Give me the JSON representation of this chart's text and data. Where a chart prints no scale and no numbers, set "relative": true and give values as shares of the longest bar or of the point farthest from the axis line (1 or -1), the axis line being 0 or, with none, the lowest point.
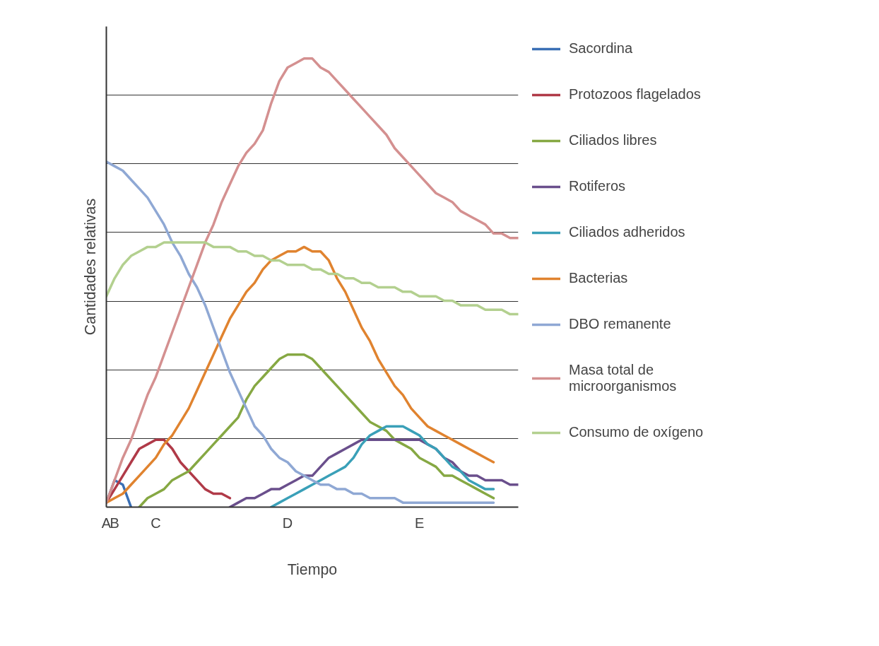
{
  "chart_data": {
    "type": "line",
    "relative": true,
    "xlabel": "Tiempo",
    "ylabel": "Cantidades relativas",
    "categories": [
      "A",
      "B",
      null,
      null,
      null,
      null,
      "C",
      null,
      null,
      null,
      null,
      null,
      null,
      null,
      null,
      null,
      null,
      null,
      null,
      null,
      null,
      null,
      "D",
      null,
      null,
      null,
      null,
      null,
      null,
      null,
      null,
      null,
      null,
      null,
      null,
      null,
      null,
      null,
      "E",
      null,
      null,
      null,
      null,
      null,
      null,
      null,
      null,
      null,
      null,
      null,
      null
    ],
    "grid": "y",
    "legend": "right",
    "series": [
      {
        "name": "Sacordina",
        "color": "#3a6fb5",
        "values": [
          0.01,
          0.06,
          0.05,
          0.0,
          null,
          null,
          null,
          null,
          null,
          null,
          null,
          null,
          null,
          null,
          null,
          null,
          null,
          null,
          null,
          null,
          null,
          null,
          null,
          null,
          null,
          null,
          null,
          null,
          null,
          null,
          null,
          null,
          null,
          null,
          null,
          null,
          null,
          null,
          null,
          null,
          null,
          null,
          null,
          null,
          null,
          null,
          null,
          null,
          null,
          null,
          null
        ]
      },
      {
        "name": "Protozoos flagelados",
        "color": "#b03a48",
        "values": [
          0.01,
          0.04,
          0.07,
          0.1,
          0.13,
          0.14,
          0.15,
          0.15,
          0.13,
          0.1,
          0.08,
          0.06,
          0.04,
          0.03,
          0.03,
          0.02,
          null,
          null,
          null,
          null,
          null,
          null,
          null,
          null,
          null,
          null,
          null,
          null,
          null,
          null,
          null,
          null,
          null,
          null,
          null,
          null,
          null,
          null,
          null,
          null,
          null,
          null,
          null,
          null,
          null,
          null,
          null,
          null,
          null,
          null,
          null
        ]
      },
      {
        "name": "Ciliados libres",
        "color": "#86a843",
        "values": [
          null,
          null,
          null,
          null,
          0.0,
          0.02,
          0.03,
          0.04,
          0.06,
          0.07,
          0.08,
          0.1,
          0.12,
          0.14,
          0.16,
          0.18,
          0.2,
          0.24,
          0.27,
          0.29,
          0.31,
          0.33,
          0.34,
          0.34,
          0.34,
          0.33,
          0.31,
          0.29,
          0.27,
          0.25,
          0.23,
          0.21,
          0.19,
          0.18,
          0.17,
          0.15,
          0.14,
          0.13,
          0.11,
          0.1,
          0.09,
          0.07,
          0.07,
          0.06,
          0.05,
          0.04,
          0.03,
          0.02,
          null,
          null,
          null
        ]
      },
      {
        "name": "Rotiferos",
        "color": "#6a4f8c",
        "values": [
          null,
          null,
          null,
          null,
          null,
          null,
          null,
          null,
          null,
          null,
          null,
          null,
          null,
          null,
          null,
          0.0,
          0.01,
          0.02,
          0.02,
          0.03,
          0.04,
          0.04,
          0.05,
          0.06,
          0.07,
          0.07,
          0.09,
          0.11,
          0.12,
          0.13,
          0.14,
          0.15,
          0.15,
          0.15,
          0.15,
          0.15,
          0.15,
          0.15,
          0.15,
          0.14,
          0.13,
          0.11,
          0.1,
          0.08,
          0.07,
          0.07,
          0.06,
          0.06,
          0.06,
          0.05,
          0.05
        ]
      },
      {
        "name": "Ciliados adheridos",
        "color": "#3aa0b8",
        "values": [
          null,
          null,
          null,
          null,
          null,
          null,
          null,
          null,
          null,
          null,
          null,
          null,
          null,
          null,
          null,
          null,
          null,
          null,
          null,
          null,
          0.0,
          0.01,
          0.02,
          0.03,
          0.04,
          0.05,
          0.06,
          0.07,
          0.08,
          0.09,
          0.11,
          0.14,
          0.16,
          0.17,
          0.18,
          0.18,
          0.18,
          0.17,
          0.16,
          0.14,
          0.13,
          0.11,
          0.09,
          0.08,
          0.06,
          0.05,
          0.04,
          0.04,
          null,
          null,
          null
        ]
      },
      {
        "name": "Bacterias",
        "color": "#e0832f",
        "values": [
          0.01,
          0.02,
          0.03,
          0.05,
          0.07,
          0.09,
          0.11,
          0.14,
          0.16,
          0.19,
          0.22,
          0.26,
          0.3,
          0.34,
          0.38,
          0.42,
          0.45,
          0.48,
          0.5,
          0.53,
          0.55,
          0.56,
          0.57,
          0.57,
          0.58,
          0.57,
          0.57,
          0.55,
          0.51,
          0.48,
          0.44,
          0.4,
          0.37,
          0.33,
          0.3,
          0.27,
          0.25,
          0.22,
          0.2,
          0.18,
          0.17,
          0.16,
          0.15,
          0.14,
          0.13,
          0.12,
          0.11,
          0.1,
          null,
          null,
          null
        ]
      },
      {
        "name": "DBO remanente",
        "color": "#8fa8d4",
        "values": [
          0.77,
          0.76,
          0.75,
          0.73,
          0.71,
          0.69,
          0.66,
          0.63,
          0.59,
          0.56,
          0.52,
          0.49,
          0.45,
          0.4,
          0.35,
          0.3,
          0.26,
          0.22,
          0.18,
          0.16,
          0.13,
          0.11,
          0.1,
          0.08,
          0.07,
          0.06,
          0.05,
          0.05,
          0.04,
          0.04,
          0.03,
          0.03,
          0.02,
          0.02,
          0.02,
          0.02,
          0.01,
          0.01,
          0.01,
          0.01,
          0.01,
          0.01,
          0.01,
          0.01,
          0.01,
          0.01,
          0.01,
          0.01,
          null,
          null,
          null
        ]
      },
      {
        "name": "Masa total de microorganismos",
        "color": "#d49090",
        "values": [
          0.01,
          0.06,
          0.11,
          0.15,
          0.2,
          0.25,
          0.29,
          0.34,
          0.39,
          0.44,
          0.49,
          0.54,
          0.59,
          0.63,
          0.68,
          0.72,
          0.76,
          0.79,
          0.81,
          0.84,
          0.9,
          0.95,
          0.98,
          0.99,
          1.0,
          1.0,
          0.98,
          0.97,
          0.95,
          0.93,
          0.91,
          0.89,
          0.87,
          0.85,
          0.83,
          0.8,
          0.78,
          0.76,
          0.74,
          0.72,
          0.7,
          0.69,
          0.68,
          0.66,
          0.65,
          0.64,
          0.63,
          0.61,
          0.61,
          0.6,
          0.6
        ]
      },
      {
        "name": "Consumo de oxígeno",
        "color": "#b3d08f",
        "values": [
          0.47,
          0.51,
          0.54,
          0.56,
          0.57,
          0.58,
          0.58,
          0.59,
          0.59,
          0.59,
          0.59,
          0.59,
          0.59,
          0.58,
          0.58,
          0.58,
          0.57,
          0.57,
          0.56,
          0.56,
          0.55,
          0.55,
          0.54,
          0.54,
          0.54,
          0.53,
          0.53,
          0.52,
          0.52,
          0.51,
          0.51,
          0.5,
          0.5,
          0.49,
          0.49,
          0.49,
          0.48,
          0.48,
          0.47,
          0.47,
          0.47,
          0.46,
          0.46,
          0.45,
          0.45,
          0.45,
          0.44,
          0.44,
          0.44,
          0.43,
          0.43
        ]
      }
    ]
  }
}
